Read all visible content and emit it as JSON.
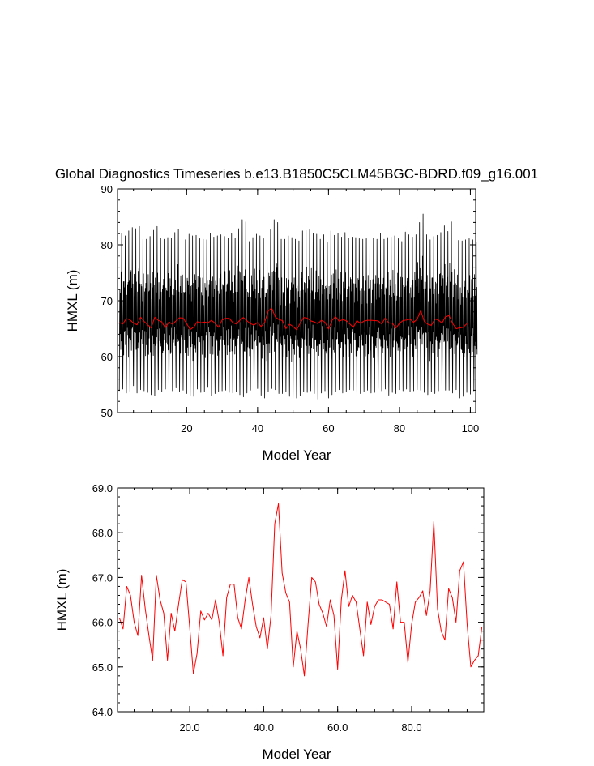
{
  "figure": {
    "title": "Global Diagnostics Timeseries b.e13.B1850C5CLM45BGC-BDRD.f09_g16.001"
  },
  "chart_data": [
    {
      "type": "line",
      "title": "Global Diagnostics Timeseries b.e13.B1850C5CLM45BGC-BDRD.f09_g16.001",
      "xlabel": "Model Year",
      "ylabel": "HMXL (m)",
      "xlim": [
        0.5,
        101.5
      ],
      "ylim": [
        50,
        90
      ],
      "xticks": [
        20,
        40,
        60,
        80,
        100
      ],
      "xtick_labels": [
        "20",
        "40",
        "60",
        "80",
        "100"
      ],
      "yticks": [
        50,
        60,
        70,
        80,
        90
      ],
      "ytick_labels": [
        "50",
        "60",
        "70",
        "80",
        "90"
      ],
      "grid": false,
      "series": [
        {
          "color": "#000000",
          "sampling": "monthly",
          "x_start": 1,
          "seasonal_amplitude": 12,
          "yearly_max": [
            82.0,
            81.6,
            82.5,
            83.1,
            82.9,
            83.3,
            81.0,
            81.0,
            81.5,
            82.6,
            83.3,
            81.2,
            81.0,
            81.3,
            81.2,
            82.2,
            82.8,
            81.4,
            80.9,
            81.9,
            81.6,
            81.7,
            81.1,
            81.0,
            80.9,
            82.0,
            81.4,
            81.6,
            81.8,
            81.5,
            81.2,
            82.0,
            81.2,
            82.9,
            84.5,
            84.1,
            80.6,
            81.3,
            81.9,
            81.6,
            81.1,
            81.1,
            82.7,
            84.5,
            84.0,
            81.0,
            81.0,
            81.6,
            81.3,
            81.0,
            80.7,
            82.5,
            82.6,
            82.7,
            82.1,
            81.9,
            81.0,
            81.8,
            80.4,
            82.5,
            81.7,
            82.0,
            81.4,
            82.2,
            81.2,
            81.4,
            81.3,
            81.1,
            81.0,
            81.1,
            81.7,
            81.2,
            81.0,
            82.1,
            81.0,
            81.3,
            81.4,
            81.6,
            81.1,
            80.6,
            82.3,
            81.8,
            81.4,
            81.8,
            84.0,
            85.5,
            81.8,
            80.9,
            81.5,
            81.7,
            82.2,
            83.4,
            82.4,
            84.1,
            83.0,
            80.8,
            80.7,
            80.9,
            81.1,
            80.9,
            80.5
          ],
          "yearly_min": [
            53.9,
            54.2,
            53.5,
            53.8,
            54.8,
            53.5,
            54.1,
            53.9,
            53.6,
            53.2,
            53.0,
            54.1,
            53.7,
            54.2,
            53.3,
            53.9,
            54.4,
            53.8,
            54.0,
            53.4,
            53.0,
            52.9,
            54.2,
            53.6,
            53.8,
            54.5,
            53.0,
            53.4,
            53.8,
            53.9,
            54.0,
            53.6,
            53.5,
            53.7,
            53.2,
            52.8,
            53.5,
            54.0,
            53.7,
            54.3,
            53.1,
            52.6,
            53.8,
            54.3,
            54.1,
            53.4,
            53.4,
            53.7,
            52.9,
            52.5,
            52.6,
            53.0,
            53.7,
            53.6,
            53.9,
            53.4,
            52.4,
            53.5,
            53.9,
            52.6,
            53.2,
            53.7,
            54.1,
            53.5,
            53.7,
            54.1,
            54.0,
            53.2,
            53.4,
            53.8,
            54.0,
            53.5,
            53.6,
            54.3,
            53.9,
            54.2,
            53.1,
            53.6,
            53.4,
            54.1,
            53.9,
            54.2,
            53.8,
            53.9,
            54.1,
            54.0,
            53.6,
            53.2,
            53.7,
            53.4,
            53.9,
            53.8,
            54.0,
            54.0,
            53.5,
            54.1,
            52.6,
            52.9,
            53.6,
            53.3,
            53.9
          ]
        },
        {
          "color": "#ff0000",
          "sampling": "annual",
          "x_start": 1,
          "values": [
            66.1,
            65.85,
            66.8,
            66.6,
            66.0,
            65.7,
            67.05,
            66.3,
            65.7,
            65.15,
            67.05,
            66.5,
            66.2,
            65.15,
            66.2,
            65.8,
            66.4,
            66.95,
            66.9,
            65.9,
            64.85,
            65.3,
            66.25,
            66.05,
            66.2,
            66.05,
            66.5,
            66.0,
            65.25,
            66.55,
            66.85,
            66.85,
            66.1,
            65.85,
            66.5,
            67.0,
            66.4,
            65.9,
            65.65,
            66.1,
            65.4,
            66.15,
            68.2,
            68.65,
            67.1,
            66.65,
            66.45,
            65.0,
            65.8,
            65.4,
            64.8,
            65.95,
            67.0,
            66.9,
            66.4,
            66.2,
            65.9,
            66.5,
            66.15,
            64.95,
            66.5,
            67.15,
            66.35,
            66.6,
            66.45,
            65.85,
            65.25,
            66.45,
            65.95,
            66.35,
            66.5,
            66.5,
            66.45,
            66.4,
            65.85,
            66.9,
            66.0,
            66.0,
            65.1,
            65.95,
            66.45,
            66.55,
            66.7,
            66.15,
            66.7,
            68.25,
            66.3,
            65.8,
            65.6,
            66.75,
            66.55,
            66.0,
            67.15,
            67.35,
            65.95,
            65.0,
            65.15,
            65.25,
            65.9
          ]
        }
      ]
    },
    {
      "type": "line",
      "title": "",
      "xlabel": "Model Year",
      "ylabel": "HMXL (m)",
      "xlim": [
        0.5,
        99.5
      ],
      "ylim": [
        64.0,
        69.0
      ],
      "xticks": [
        20,
        40,
        60,
        80
      ],
      "xtick_labels": [
        "20.0",
        "40.0",
        "60.0",
        "80.0"
      ],
      "yticks": [
        64.0,
        65.0,
        66.0,
        67.0,
        68.0,
        69.0
      ],
      "ytick_labels": [
        "64.0",
        "65.0",
        "66.0",
        "67.0",
        "68.0",
        "69.0"
      ],
      "grid": false,
      "series": [
        {
          "color": "#ff0000",
          "sampling": "annual",
          "x_start": 1,
          "values": [
            66.1,
            65.85,
            66.8,
            66.6,
            66.0,
            65.7,
            67.05,
            66.3,
            65.7,
            65.15,
            67.05,
            66.5,
            66.2,
            65.15,
            66.2,
            65.8,
            66.4,
            66.95,
            66.9,
            65.9,
            64.85,
            65.3,
            66.25,
            66.05,
            66.2,
            66.05,
            66.5,
            66.0,
            65.25,
            66.55,
            66.85,
            66.85,
            66.1,
            65.85,
            66.5,
            67.0,
            66.4,
            65.9,
            65.65,
            66.1,
            65.4,
            66.15,
            68.2,
            68.65,
            67.1,
            66.65,
            66.45,
            65.0,
            65.8,
            65.4,
            64.8,
            65.95,
            67.0,
            66.9,
            66.4,
            66.2,
            65.9,
            66.5,
            66.15,
            64.95,
            66.5,
            67.15,
            66.35,
            66.6,
            66.45,
            65.85,
            65.25,
            66.45,
            65.95,
            66.35,
            66.5,
            66.5,
            66.45,
            66.4,
            65.85,
            66.9,
            66.0,
            66.0,
            65.1,
            65.95,
            66.45,
            66.55,
            66.7,
            66.15,
            66.7,
            68.25,
            66.3,
            65.8,
            65.6,
            66.75,
            66.55,
            66.0,
            67.15,
            67.35,
            65.95,
            65.0,
            65.15,
            65.25,
            65.9
          ]
        }
      ]
    }
  ]
}
